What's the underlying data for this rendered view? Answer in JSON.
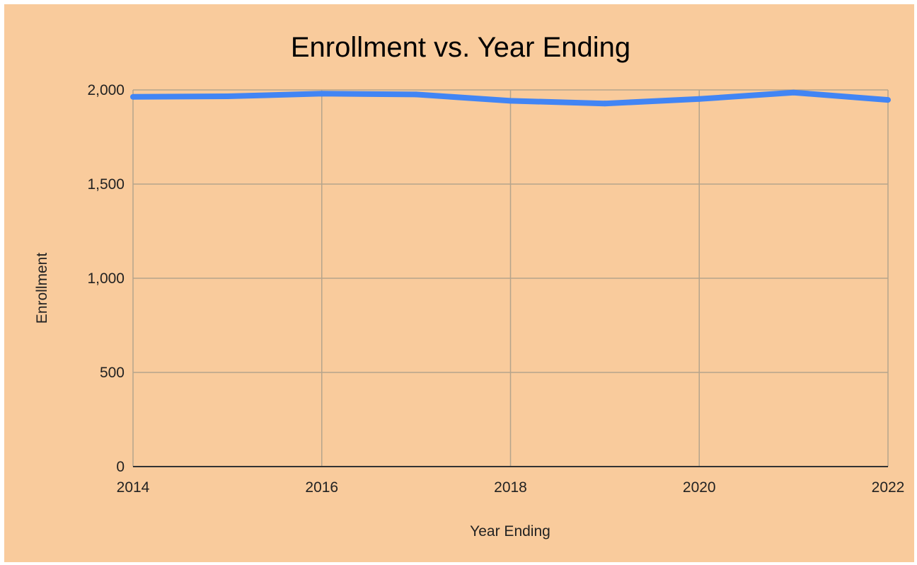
{
  "colors": {
    "background": "#f9cb9c",
    "gridline": "#b5a48c",
    "series": "#4285f4",
    "baseline": "#333333"
  },
  "chart_data": {
    "type": "line",
    "title": "Enrollment vs. Year Ending",
    "xlabel": "Year Ending",
    "ylabel": "Enrollment",
    "x": [
      2014,
      2015,
      2016,
      2017,
      2018,
      2019,
      2020,
      2021,
      2022
    ],
    "series": [
      {
        "values": [
          1963,
          1966,
          1980,
          1976,
          1942,
          1928,
          1952,
          1986,
          1947
        ]
      }
    ],
    "xlim": [
      2014,
      2022
    ],
    "ylim": [
      0,
      2000
    ],
    "x_ticks": [
      2014,
      2016,
      2018,
      2020,
      2022
    ],
    "x_tick_labels": [
      "2014",
      "2016",
      "2018",
      "2020",
      "2022"
    ],
    "y_ticks": [
      0,
      500,
      1000,
      1500,
      2000
    ],
    "y_tick_labels": [
      "0",
      "500",
      "1,000",
      "1,500",
      "2,000"
    ],
    "grid": true,
    "legend": "none"
  }
}
